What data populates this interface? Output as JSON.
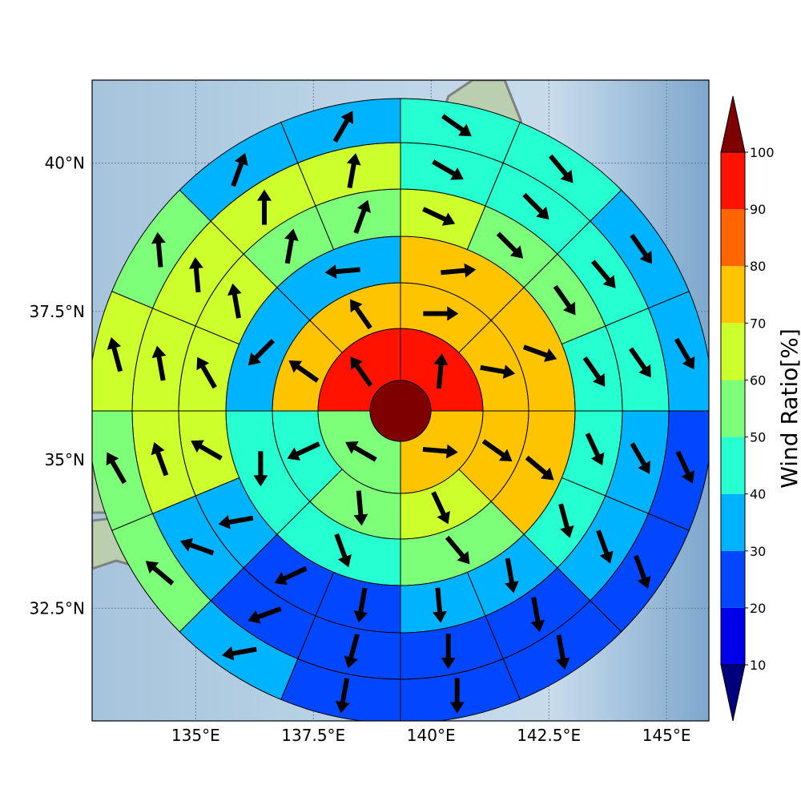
{
  "map": {
    "lon_range": [
      132.8,
      145.9
    ],
    "lat_range": [
      30.6,
      41.4
    ],
    "lon_ticks": [
      135,
      137.5,
      140,
      142.5,
      145
    ],
    "lat_ticks": [
      32.5,
      35,
      37.5,
      40
    ],
    "lon_tick_labels": [
      "135°E",
      "137.5°E",
      "140°E",
      "142.5°E",
      "145°E"
    ],
    "lat_tick_labels": [
      "32.5°N",
      "35°N",
      "37.5°N",
      "40°N"
    ],
    "grid": true,
    "background": "shaded-relief",
    "coastline_color": "#808080"
  },
  "colorbar": {
    "title": "Wind Ratio[%]",
    "levels": [
      10,
      20,
      30,
      40,
      50,
      60,
      70,
      80,
      90,
      100
    ],
    "level_labels": [
      "10",
      "20",
      "30",
      "40",
      "50",
      "60",
      "70",
      "80",
      "90",
      "100"
    ],
    "under_color": "#00007f",
    "over_color": "#7f0000",
    "bin_colors": [
      "#0000e8",
      "#0047ff",
      "#00b3ff",
      "#26ffd0",
      "#7dff7a",
      "#ccff2c",
      "#ffc400",
      "#ff6500",
      "#ff1300"
    ],
    "extend": "both"
  },
  "chart_data": {
    "type": "heatmap",
    "title": "",
    "description_of_grid": "polar grid of rings x 16 directional sectors centred over Japan; each cell colored by wind ratio and carries a wind direction arrow",
    "center": {
      "value": 100,
      "color": "#7f0000"
    },
    "sector_directions": [
      "N",
      "NNE",
      "NE",
      "ENE",
      "E",
      "ESE",
      "SE",
      "SSE",
      "S",
      "SSW",
      "SW",
      "WSW",
      "W",
      "WNW",
      "NW",
      "NNW"
    ],
    "ring_sectors": [
      4,
      8,
      8,
      16,
      16,
      16
    ],
    "rings": [
      {
        "values": [
          90,
          70,
          55,
          90
        ],
        "arrow_deg": [
          5,
          95,
          300,
          325
        ]
      },
      {
        "values": [
          70,
          70,
          70,
          60,
          50,
          40,
          70,
          70
        ],
        "arrow_deg": [
          90,
          100,
          125,
          155,
          175,
          245,
          305,
          325
        ]
      },
      {
        "values": [
          70,
          70,
          70,
          50,
          40,
          40,
          30,
          30
        ],
        "arrow_deg": [
          85,
          110,
          130,
          140,
          160,
          180,
          225,
          265
        ]
      },
      {
        "values": [
          60,
          50,
          50,
          40,
          40,
          40,
          30,
          30,
          20,
          20,
          30,
          60,
          60,
          60,
          50,
          50
        ],
        "arrow_deg": [
          115,
          135,
          145,
          145,
          155,
          165,
          170,
          175,
          190,
          245,
          260,
          300,
          330,
          350,
          10,
          20
        ]
      },
      {
        "values": [
          40,
          40,
          40,
          40,
          30,
          30,
          20,
          20,
          20,
          20,
          30,
          60,
          60,
          60,
          60,
          60
        ],
        "arrow_deg": [
          120,
          135,
          140,
          145,
          150,
          160,
          170,
          180,
          195,
          250,
          290,
          340,
          350,
          355,
          0,
          10
        ]
      },
      {
        "values": [
          40,
          40,
          30,
          30,
          20,
          20,
          20,
          20,
          20,
          30,
          50,
          50,
          60,
          50,
          30,
          30
        ],
        "arrow_deg": [
          125,
          140,
          145,
          150,
          155,
          160,
          170,
          180,
          190,
          260,
          310,
          330,
          345,
          355,
          20,
          30
        ]
      }
    ]
  }
}
